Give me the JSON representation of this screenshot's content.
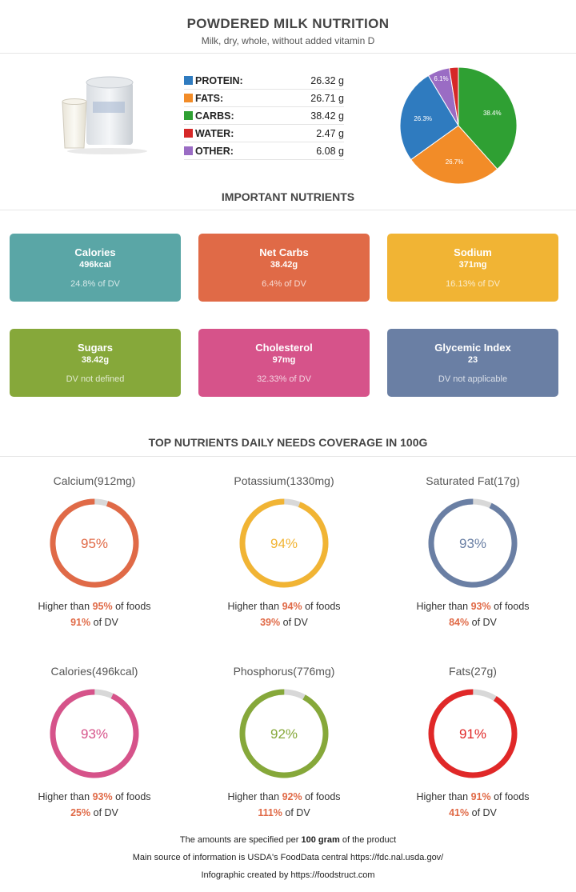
{
  "header": {
    "title": "POWDERED MILK NUTRITION",
    "subtitle": "Milk, dry, whole, without added vitamin D"
  },
  "composition": [
    {
      "name": "PROTEIN:",
      "value": "26.32 g",
      "color": "#2f7bbf"
    },
    {
      "name": "FATS:",
      "value": "26.71 g",
      "color": "#f28c28"
    },
    {
      "name": "CARBS:",
      "value": "38.42 g",
      "color": "#2fa033"
    },
    {
      "name": "WATER:",
      "value": "2.47 g",
      "color": "#d62828"
    },
    {
      "name": "OTHER:",
      "value": "6.08 g",
      "color": "#9a6cc4"
    }
  ],
  "chart_data": {
    "type": "pie",
    "categories": [
      "Carbs",
      "Fats",
      "Protein",
      "Other",
      "Water"
    ],
    "values": [
      38.4,
      26.7,
      26.3,
      6.1,
      2.5
    ],
    "labels": [
      "38.4%",
      "26.7%",
      "26.3%",
      "6.1%",
      ""
    ],
    "colors": [
      "#2fa033",
      "#f28c28",
      "#2f7bbf",
      "#9a6cc4",
      "#d62828"
    ]
  },
  "sections": {
    "important": "IMPORTANT NUTRIENTS",
    "coverage": "TOP NUTRIENTS DAILY NEEDS COVERAGE IN 100G"
  },
  "cards": [
    {
      "name": "Calories",
      "value": "496kcal",
      "dv": "24.8% of DV",
      "color": "#5aa6a6"
    },
    {
      "name": "Net Carbs",
      "value": "38.42g",
      "dv": "6.4% of DV",
      "color": "#e06a47"
    },
    {
      "name": "Sodium",
      "value": "371mg",
      "dv": "16.13% of DV",
      "color": "#f1b434"
    },
    {
      "name": "Sugars",
      "value": "38.42g",
      "dv": "DV not defined",
      "color": "#86a83a"
    },
    {
      "name": "Cholesterol",
      "value": "97mg",
      "dv": "32.33% of DV",
      "color": "#d6538a"
    },
    {
      "name": "Glycemic Index",
      "value": "23",
      "dv": "DV not applicable",
      "color": "#6a7fa4"
    }
  ],
  "rings": [
    {
      "title": "Calcium(912mg)",
      "percent": 95,
      "label": "95%",
      "higher": "95%",
      "dv": "91%",
      "color": "#e06a47"
    },
    {
      "title": "Potassium(1330mg)",
      "percent": 94,
      "label": "94%",
      "higher": "94%",
      "dv": "39%",
      "color": "#f1b434"
    },
    {
      "title": "Saturated Fat(17g)",
      "percent": 93,
      "label": "93%",
      "higher": "93%",
      "dv": "84%",
      "color": "#6a7fa4"
    },
    {
      "title": "Calories(496kcal)",
      "percent": 93,
      "label": "93%",
      "higher": "93%",
      "dv": "25%",
      "color": "#d6538a"
    },
    {
      "title": "Phosphorus(776mg)",
      "percent": 92,
      "label": "92%",
      "higher": "92%",
      "dv": "111%",
      "color": "#86a83a"
    },
    {
      "title": "Fats(27g)",
      "percent": 91,
      "label": "91%",
      "higher": "91%",
      "dv": "41%",
      "color": "#e02828"
    }
  ],
  "ring_text": {
    "higher_prefix": "Higher than ",
    "higher_suffix": " of foods",
    "dv_suffix": " of DV"
  },
  "footer": {
    "line1_pre": "The amounts are specified per ",
    "line1_bold": "100 gram",
    "line1_post": " of the product",
    "line2": "Main source of information is USDA's FoodData central https://fdc.nal.usda.gov/",
    "line3": "Infographic created by https://foodstruct.com"
  }
}
